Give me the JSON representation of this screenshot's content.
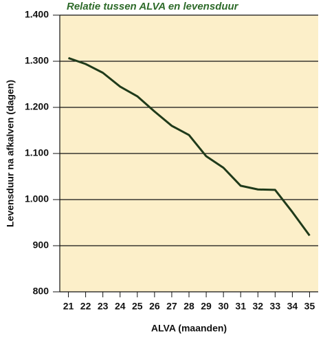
{
  "chart_data": {
    "type": "line",
    "title": "Relatie tussen ALVA en levensduur",
    "x_label": "ALVA (maanden)",
    "y_label": "Levensduur na afkalven (dagen)",
    "x": [
      21,
      22,
      23,
      24,
      25,
      26,
      27,
      28,
      29,
      30,
      31,
      32,
      33,
      34,
      35
    ],
    "values": [
      1307,
      1294,
      1275,
      1245,
      1224,
      1191,
      1160,
      1140,
      1094,
      1069,
      1030,
      1022,
      1021,
      973,
      922
    ],
    "color": "#1f3a1a",
    "background": "#fcefc9",
    "xlim": [
      20.5,
      35.5
    ],
    "xticks": [
      21,
      22,
      23,
      24,
      25,
      26,
      27,
      28,
      29,
      30,
      31,
      32,
      33,
      34,
      35
    ],
    "ylim": [
      800,
      1400
    ],
    "yticks": [
      800,
      900,
      {
        "value": 1000,
        "label": "1.000"
      },
      {
        "value": 1100,
        "label": "1.100"
      },
      {
        "value": 1200,
        "label": "1.200"
      },
      {
        "value": 1300,
        "label": "1.300"
      },
      {
        "value": 1400,
        "label": "1.400"
      }
    ],
    "grid": true
  }
}
